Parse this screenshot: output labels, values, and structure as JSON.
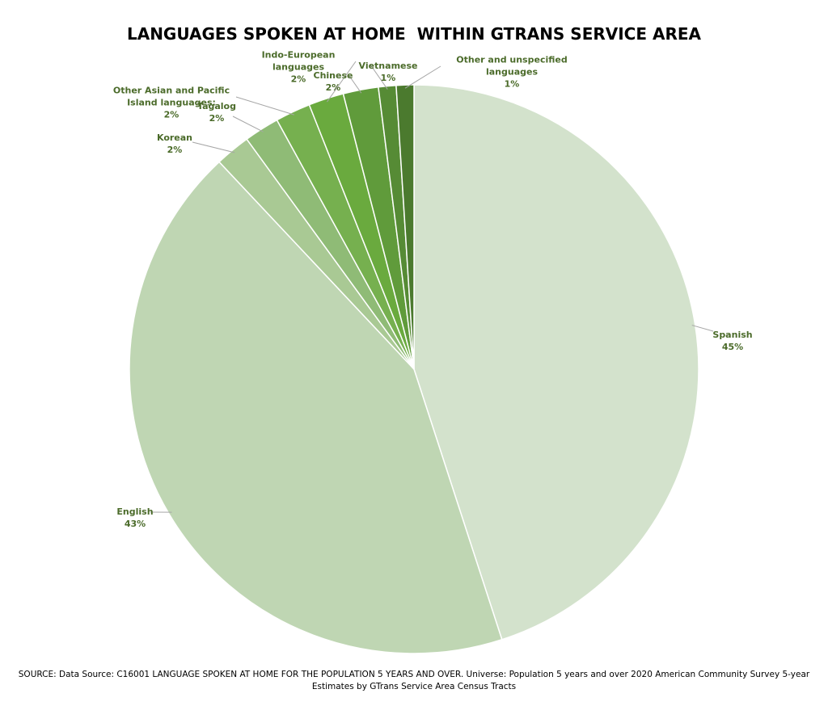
{
  "chart_data": {
    "type": "pie",
    "title": "LANGUAGES SPOKEN AT HOME  WITHIN GTRANS SERVICE AREA",
    "categories": [
      "Spanish",
      "English",
      "Korean",
      "Tagalog",
      "Other Asian and Pacific Island languages:",
      "Indo-European languages",
      "Chinese",
      "Vietnamese",
      "Other and unspecified languages"
    ],
    "values": [
      45,
      43,
      2,
      2,
      2,
      2,
      2,
      1,
      1
    ],
    "value_labels": [
      "45%",
      "43%",
      "2%",
      "2%",
      "2%",
      "2%",
      "2%",
      "1%",
      "1%"
    ],
    "colors": [
      "#d3e2cc",
      "#bfd6b3",
      "#a9c994",
      "#8fbb76",
      "#76b04f",
      "#6aaa3e",
      "#609b3b",
      "#568b35",
      "#4b7a2e"
    ],
    "note": "SOURCE: Data Source: C16001 LANGUAGE SPOKEN AT HOME FOR THE POPULATION 5 YEARS AND OVER. Universe: Population 5 years and over 2020 American Community Survey 5-year Estimates  by GTrans Service Area Census Tracts"
  }
}
